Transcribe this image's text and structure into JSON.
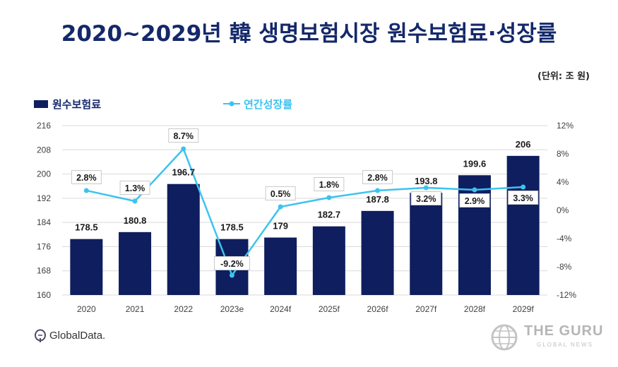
{
  "title": "2020~2029년 韓 생명보험시장 원수보험료·성장률",
  "unit": "(단위: 조 원)",
  "footer": {
    "brand": "GlobalData."
  },
  "watermark": {
    "title": "THE GURU",
    "subtitle": "GLOBAL NEWS"
  },
  "chart_data": {
    "type": "bar",
    "categories": [
      "2020",
      "2021",
      "2022",
      "2023e",
      "2024f",
      "2025f",
      "2026f",
      "2027f",
      "2028f",
      "2029f"
    ],
    "series": [
      {
        "name": "원수보험료",
        "type": "bar",
        "axis": "left",
        "values": [
          178.5,
          180.8,
          196.7,
          178.5,
          179,
          182.7,
          187.8,
          193.8,
          199.6,
          206
        ],
        "labels": [
          "178.5",
          "180.8",
          "196.7",
          "178.5",
          "179",
          "182.7",
          "187.8",
          "193.8",
          "199.6",
          "206"
        ],
        "color": "#0f1e5e"
      },
      {
        "name": "연간성장률",
        "type": "line",
        "axis": "right",
        "values": [
          2.8,
          1.3,
          8.7,
          -9.2,
          0.5,
          1.8,
          2.8,
          3.2,
          2.9,
          3.3
        ],
        "labels": [
          "2.8%",
          "1.3%",
          "8.7%",
          "-9.2%",
          "0.5%",
          "1.8%",
          "2.8%",
          "3.2%",
          "2.9%",
          "3.3%"
        ],
        "color": "#3cc3f0"
      }
    ],
    "y_left": {
      "min": 160,
      "max": 216,
      "ticks": [
        "160",
        "168",
        "176",
        "184",
        "192",
        "200",
        "208",
        "216"
      ]
    },
    "y_right": {
      "min": -12,
      "max": 12,
      "ticks": [
        "-12%",
        "-8%",
        "-4%",
        "0%",
        "4%",
        "8%",
        "12%"
      ]
    },
    "grid": true,
    "legend": "top-left"
  }
}
